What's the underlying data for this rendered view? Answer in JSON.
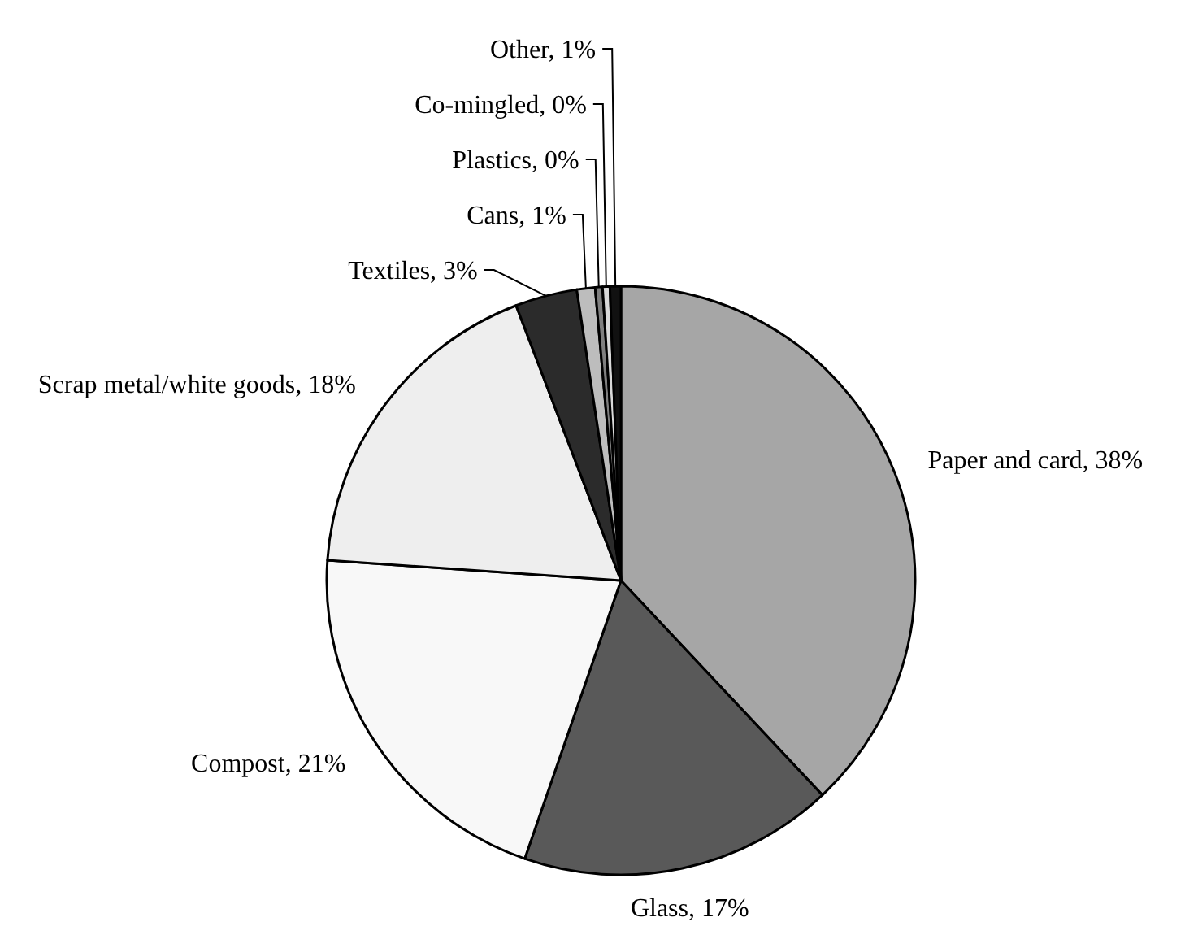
{
  "chart_data": {
    "type": "pie",
    "categories": [
      "Paper and card",
      "Glass",
      "Compost",
      "Scrap metal/white goods",
      "Textiles",
      "Cans",
      "Plastics",
      "Co-mingled",
      "Other"
    ],
    "values": [
      38.0,
      17.3,
      20.8,
      18.1,
      3.4,
      1.0,
      0.4,
      0.4,
      0.6
    ],
    "value_labels": [
      "38%",
      "17%",
      "21%",
      "18%",
      "3%",
      "1%",
      "0%",
      "0%",
      "1%"
    ],
    "colors": [
      "#a6a6a6",
      "#595959",
      "#f8f8f8",
      "#eeeeee",
      "#2b2b2b",
      "#bdbdbd",
      "#7f7f7f",
      "#d9d9d9",
      "#111111"
    ]
  }
}
